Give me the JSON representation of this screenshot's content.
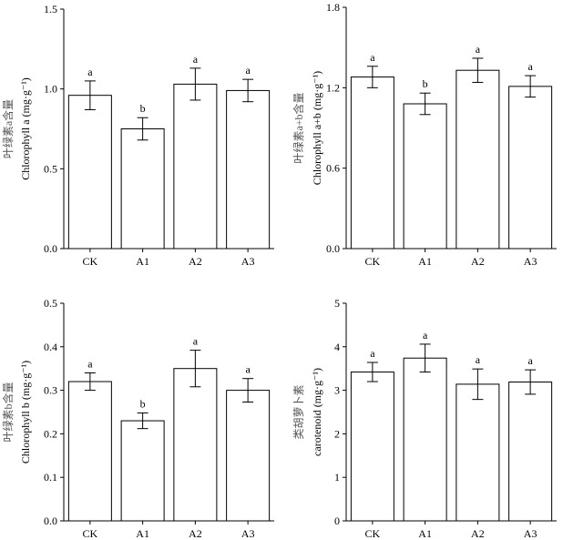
{
  "chart_data": [
    {
      "type": "bar",
      "categories": [
        "CK",
        "A1",
        "A2",
        "A3"
      ],
      "values": [
        0.96,
        0.75,
        1.03,
        0.99
      ],
      "errors": [
        0.09,
        0.07,
        0.1,
        0.07
      ],
      "letters": [
        "a",
        "b",
        "a",
        "a"
      ],
      "ylabel_cn": "叶绿素a含量",
      "ylabel_en": "Chlorophyll a (mg·g⁻¹)",
      "ylim": [
        0,
        1.5
      ],
      "yticks": [
        0.0,
        0.5,
        1.0,
        1.5
      ],
      "ytick_labels": [
        "0.0",
        "0.5",
        "1.0",
        "1.5"
      ],
      "title": ""
    },
    {
      "type": "bar",
      "categories": [
        "CK",
        "A1",
        "A2",
        "A3"
      ],
      "values": [
        1.28,
        1.08,
        1.33,
        1.21
      ],
      "errors": [
        0.08,
        0.08,
        0.09,
        0.08
      ],
      "letters": [
        "a",
        "b",
        "a",
        "a"
      ],
      "ylabel_cn": "叶绿素a+b含量",
      "ylabel_en": "Chlorophyll a+b (mg·g⁻¹)",
      "ylim": [
        0,
        1.8
      ],
      "yticks": [
        0.0,
        0.6,
        1.2,
        1.8
      ],
      "ytick_labels": [
        "0.0",
        "0.6",
        "1.2",
        "1.8"
      ],
      "title": ""
    },
    {
      "type": "bar",
      "categories": [
        "CK",
        "A1",
        "A2",
        "A3"
      ],
      "values": [
        0.32,
        0.23,
        0.35,
        0.3
      ],
      "errors": [
        0.02,
        0.018,
        0.042,
        0.027
      ],
      "letters": [
        "a",
        "b",
        "a",
        "a"
      ],
      "ylabel_cn": "叶绿素b含量",
      "ylabel_en": "Chlorophyll b (mg·g⁻¹)",
      "ylim": [
        0,
        0.5
      ],
      "yticks": [
        0.0,
        0.1,
        0.2,
        0.3,
        0.4,
        0.5
      ],
      "ytick_labels": [
        "0.0",
        "0.1",
        "0.2",
        "0.3",
        "0.4",
        "0.5"
      ],
      "title": ""
    },
    {
      "type": "bar",
      "categories": [
        "CK",
        "A1",
        "A2",
        "A3"
      ],
      "values": [
        3.42,
        3.74,
        3.14,
        3.19
      ],
      "errors": [
        0.22,
        0.32,
        0.35,
        0.28
      ],
      "letters": [
        "a",
        "a",
        "a",
        "a"
      ],
      "ylabel_cn": "类胡萝卜素",
      "ylabel_en": "carotenoid (mg·g⁻¹)",
      "ylim": [
        0,
        5
      ],
      "yticks": [
        0,
        1,
        2,
        3,
        4,
        5
      ],
      "ytick_labels": [
        "0",
        "1",
        "2",
        "3",
        "4",
        "5"
      ],
      "title": ""
    }
  ]
}
